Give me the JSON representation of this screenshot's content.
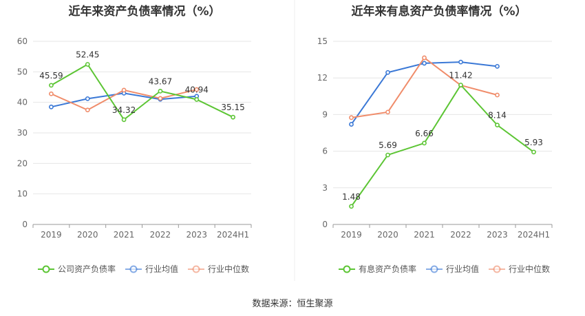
{
  "source": "数据来源：恒生聚源",
  "chart_data": [
    {
      "type": "line",
      "title": "近年来资产负债率情况（%）",
      "categories": [
        "2019",
        "2020",
        "2021",
        "2022",
        "2023",
        "2024H1"
      ],
      "ylim": [
        0,
        60
      ],
      "yticks": [
        0,
        10,
        20,
        30,
        40,
        50,
        60
      ],
      "series": [
        {
          "name": "公司资产负债率",
          "color": "#5cc534",
          "values": [
            45.59,
            52.45,
            34.32,
            43.67,
            40.94,
            35.15
          ],
          "labels": [
            "45.59",
            "52.45",
            "34.32",
            "43.67",
            "40.94",
            "35.15"
          ]
        },
        {
          "name": "行业均值",
          "color": "#3a78d6",
          "values": [
            38.5,
            41.2,
            43.0,
            41.0,
            42.0,
            null
          ]
        },
        {
          "name": "行业中位数",
          "color": "#f08c6a",
          "values": [
            42.8,
            37.5,
            44.0,
            41.3,
            44.2,
            null
          ]
        }
      ]
    },
    {
      "type": "line",
      "title": "近年来有息资产负债率情况（%）",
      "categories": [
        "2019",
        "2020",
        "2021",
        "2022",
        "2023",
        "2024H1"
      ],
      "ylim": [
        0,
        15
      ],
      "yticks": [
        0,
        3,
        6,
        9,
        12,
        15
      ],
      "series": [
        {
          "name": "有息资产负债率",
          "color": "#5cc534",
          "values": [
            1.48,
            5.69,
            6.66,
            11.42,
            8.14,
            5.93
          ],
          "labels": [
            "1.48",
            "5.69",
            "6.66",
            "11.42",
            "8.14",
            "5.93"
          ]
        },
        {
          "name": "行业均值",
          "color": "#3a78d6",
          "values": [
            8.2,
            12.45,
            13.2,
            13.3,
            12.95,
            null
          ]
        },
        {
          "name": "行业中位数",
          "color": "#f08c6a",
          "values": [
            8.75,
            9.2,
            13.65,
            11.4,
            10.6,
            null
          ]
        }
      ]
    }
  ]
}
